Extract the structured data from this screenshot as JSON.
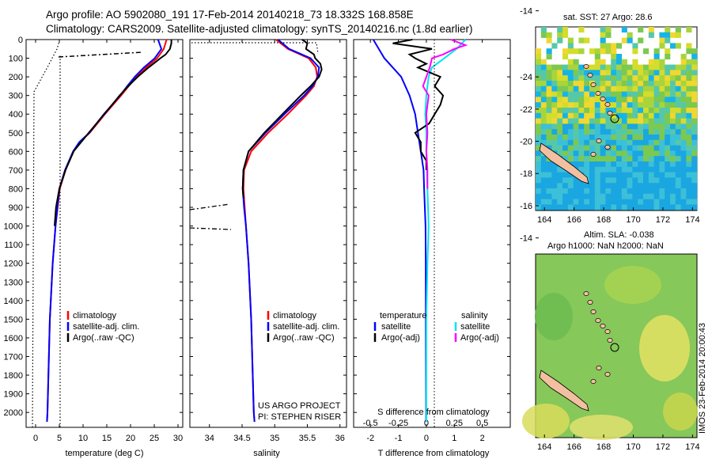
{
  "header": {
    "line1": "Argo profile: AO 5902080_191 17-Feb-2014 20140218_73 18.332S 168.858E",
    "line2": "Climatology: CARS2009. Satellite-adjusted climatology: synTS_20140216.nc (1.8d earlier)"
  },
  "credits": {
    "project": "US ARGO PROJECT",
    "pi": "PI: STEPHEN RISER",
    "watermark": "IMOS 23-Feb-2014 20:00:43"
  },
  "maps": {
    "sst_title": "sat. SST: 27 Argo: 28.6",
    "sla_title_line1": "Altim. SLA: -0.038",
    "sla_title_line2": "Argo h1000: NaN h2000: NaN",
    "lon_ticks": [
      "164",
      "166",
      "168",
      "170",
      "172",
      "174"
    ],
    "lat_ticks": [
      "-14",
      "-16",
      "-18",
      "-20",
      "-22",
      "-24"
    ]
  },
  "colors": {
    "climatology": "#ff0000",
    "satellite": "#0000ff",
    "argo": "#000000",
    "salinity_satellite": "#00e5ee",
    "salinity_argo": "#ff00ff"
  },
  "chart_data": [
    {
      "type": "line",
      "xlabel": "temperature (deg C)",
      "ylabel": "",
      "xlim": [
        -2,
        31
      ],
      "ylim": [
        2080,
        0
      ],
      "x_ticks": [
        0,
        5,
        10,
        15,
        20,
        25,
        30
      ],
      "y_ticks": [
        0,
        100,
        200,
        300,
        400,
        500,
        600,
        700,
        800,
        900,
        1000,
        1100,
        1200,
        1300,
        1400,
        1500,
        1600,
        1700,
        1800,
        1900,
        2000
      ],
      "legend": [
        "climatology",
        "satellite-adj. clim.",
        "Argo(..raw -QC)"
      ],
      "legend_position": "bottom-center",
      "series": [
        {
          "name": "climatology",
          "depth": [
            0,
            50,
            100,
            150,
            200,
            250,
            300,
            400,
            500,
            550,
            600,
            700,
            800,
            1000,
            1200,
            1500,
            2000,
            2050
          ],
          "values": [
            27.6,
            27.0,
            25.6,
            23.3,
            21.3,
            19.6,
            18.0,
            14.6,
            11.4,
            9.3,
            8.0,
            6.3,
            5.1,
            4.2,
            3.6,
            3.0,
            2.5,
            2.4
          ]
        },
        {
          "name": "satellite-adj. clim.",
          "depth": [
            0,
            50,
            100,
            150,
            200,
            250,
            300,
            400,
            500,
            550,
            600,
            700,
            800,
            1000,
            1200,
            1500,
            2000,
            2050
          ],
          "values": [
            25.8,
            26.5,
            25.1,
            22.8,
            20.9,
            19.3,
            17.8,
            14.4,
            11.3,
            9.2,
            7.9,
            6.2,
            5.0,
            4.2,
            3.6,
            3.0,
            2.5,
            2.4
          ]
        },
        {
          "name": "Argo(..raw -QC)",
          "depth": [
            0,
            20,
            50,
            80,
            100,
            150,
            200,
            250,
            300,
            400,
            500,
            600,
            700,
            800,
            900,
            1000
          ],
          "values": [
            28.6,
            28.6,
            28.3,
            27.4,
            26.3,
            23.8,
            21.5,
            19.5,
            17.7,
            14.5,
            11.2,
            8.0,
            6.3,
            5.0,
            4.3,
            4.0
          ]
        }
      ]
    },
    {
      "type": "line",
      "xlabel": "salinity",
      "ylabel": "",
      "xlim": [
        33.7,
        36.1
      ],
      "ylim": [
        2080,
        0
      ],
      "x_ticks": [
        34,
        34.5,
        35,
        35.5,
        36
      ],
      "legend": [
        "climatology",
        "satellite-adj. clim.",
        "Argo(..raw -QC)"
      ],
      "legend_position": "bottom-center",
      "series": [
        {
          "name": "climatology",
          "depth": [
            0,
            50,
            100,
            150,
            200,
            250,
            300,
            400,
            500,
            600,
            700,
            800,
            900,
            1000,
            1200,
            1500,
            2000,
            2050
          ],
          "values": [
            35.02,
            35.2,
            35.52,
            35.63,
            35.65,
            35.6,
            35.48,
            35.2,
            34.9,
            34.64,
            34.53,
            34.52,
            34.54,
            34.56,
            34.6,
            34.64,
            34.68,
            34.69
          ]
        },
        {
          "name": "satellite-adj. clim.",
          "depth": [
            0,
            50,
            100,
            150,
            200,
            250,
            300,
            400,
            500,
            600,
            700,
            800,
            900,
            1000,
            1200,
            1500,
            2000,
            2050
          ],
          "values": [
            35.05,
            35.22,
            35.55,
            35.68,
            35.66,
            35.58,
            35.45,
            35.15,
            34.86,
            34.6,
            34.52,
            34.51,
            34.53,
            34.56,
            34.6,
            34.64,
            34.68,
            34.69
          ]
        },
        {
          "name": "Argo(..raw -QC)",
          "depth": [
            0,
            20,
            50,
            80,
            100,
            130,
            160,
            200,
            250,
            300,
            400,
            500,
            600,
            700,
            800,
            850
          ],
          "values": [
            35.42,
            35.5,
            35.48,
            35.6,
            35.62,
            35.7,
            35.72,
            35.68,
            35.55,
            35.4,
            35.12,
            34.84,
            34.6,
            34.52,
            34.51,
            34.52
          ]
        }
      ]
    },
    {
      "type": "line",
      "xlabel": "T difference from climatology",
      "xlabel_top": "S difference from climatology",
      "ylabel": "",
      "xlim": [
        -2.6,
        3.0
      ],
      "ylim": [
        2080,
        0
      ],
      "x_ticks": [
        -2,
        -1,
        0,
        1,
        2
      ],
      "x_ticks_top": [
        "-0.5",
        "-0.25",
        "0",
        "0.25",
        "0.5"
      ],
      "legend_temperature_title": "temperature",
      "legend_salinity_title": "salinity",
      "legend": [
        "satellite",
        "Argo(-adj)",
        "satellite",
        "Argo(-adj)"
      ],
      "legend_position": "bottom-center",
      "series": [
        {
          "name": "satellite",
          "group": "temperature",
          "depth": [
            0,
            50,
            100,
            150,
            200,
            300,
            400,
            500,
            600,
            700,
            800,
            1000,
            1200,
            1500,
            2000,
            2050
          ],
          "values": [
            -1.9,
            -1.7,
            -1.5,
            -1.2,
            -0.9,
            -0.6,
            -0.4,
            -0.3,
            -0.2,
            -0.1,
            -0.08,
            -0.03,
            -0.02,
            -0.02,
            -0.01,
            -0.01
          ]
        },
        {
          "name": "satellite",
          "group": "salinity",
          "depth": [
            0,
            50,
            100,
            150,
            200,
            300,
            400,
            500,
            600,
            800,
            1000,
            1200,
            1500,
            2000,
            2050
          ],
          "values": [
            0.35,
            0.27,
            0.16,
            0.05,
            0.02,
            0.0,
            -0.01,
            0.0,
            0.0,
            0.01,
            0.02,
            0.01,
            0.0,
            0.0,
            0.0
          ]
        },
        {
          "name": "Argo(-adj)",
          "group": "temperature",
          "depth": [
            0,
            20,
            50,
            80,
            100,
            130,
            150,
            200,
            250,
            300,
            350,
            400,
            450,
            500,
            550,
            600,
            650,
            700
          ],
          "values": [
            -0.5,
            -1.2,
            0.2,
            -0.6,
            -0.4,
            0.0,
            -0.3,
            0.5,
            0.3,
            0.6,
            0.5,
            0.3,
            0.1,
            -0.4,
            -0.2,
            -0.2,
            0.0,
            0.0
          ]
        },
        {
          "name": "Argo(-adj)",
          "group": "salinity",
          "depth": [
            0,
            30,
            50,
            80,
            100,
            150,
            200,
            250,
            300,
            400,
            500,
            600,
            700,
            800
          ],
          "values": [
            0.22,
            0.35,
            0.25,
            0.15,
            0.05,
            0.03,
            0.0,
            -0.03,
            0.02,
            0.0,
            0.01,
            0.0,
            0.01,
            0.01
          ]
        }
      ]
    }
  ]
}
